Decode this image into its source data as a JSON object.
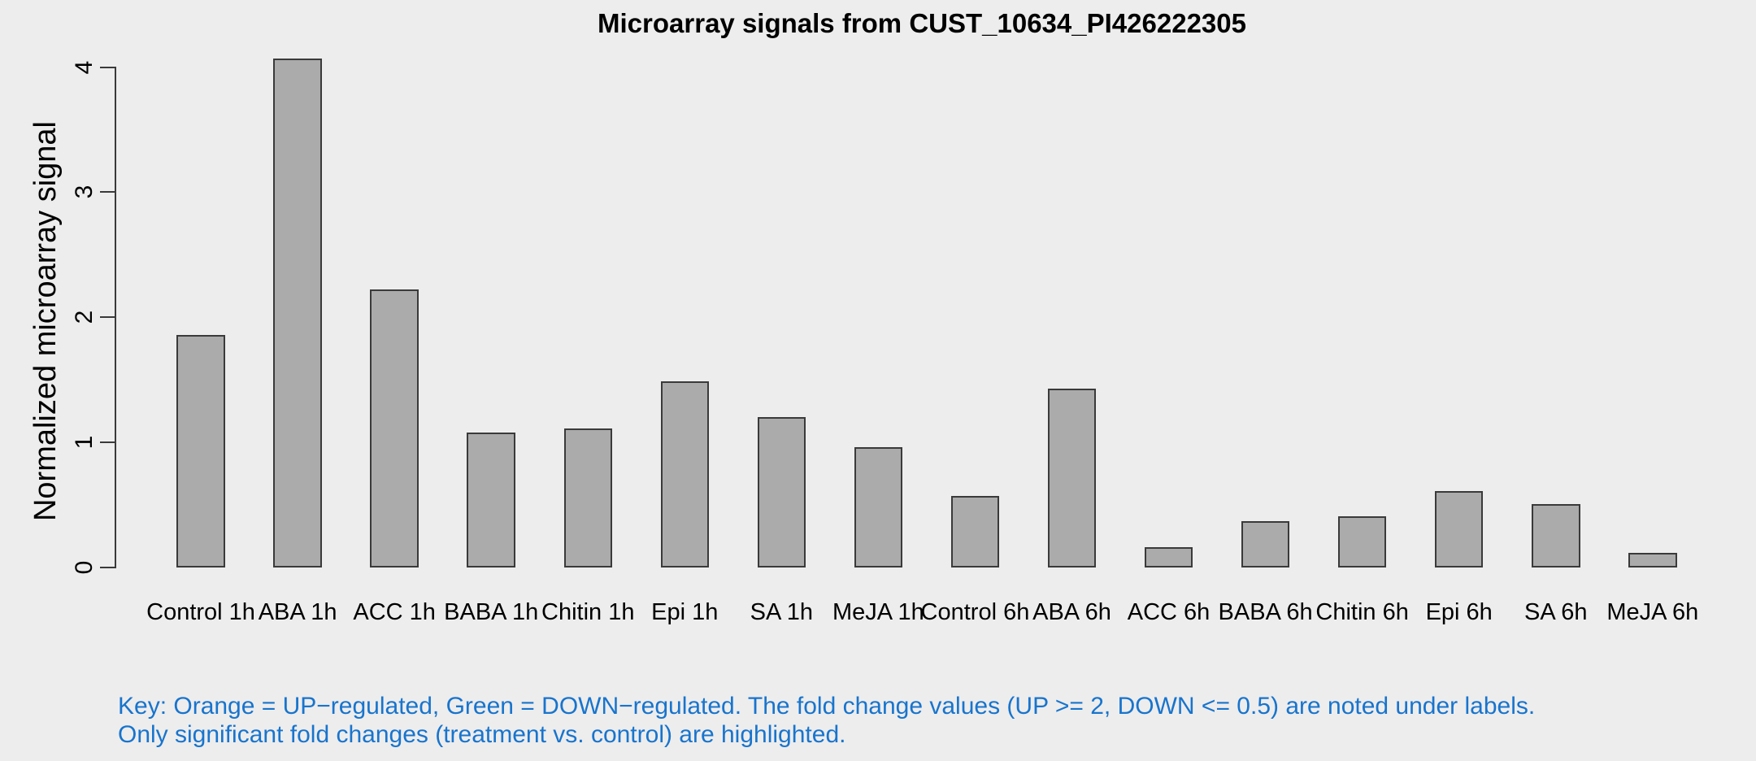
{
  "figure": {
    "title": "Microarray signals from CUST_10634_PI426222305",
    "y_axis_label": "Normalized microarray signal",
    "note_line1": "Key: Orange = UP−regulated, Green = DOWN−regulated. The fold change values (UP >= 2, DOWN <= 0.5) are noted under labels.",
    "note_line2": "Only significant fold changes (treatment vs. control) are highlighted.",
    "note_color": "#1874CD",
    "background_color": "#EDEDED",
    "text_color": "#000000"
  },
  "chart_data": {
    "type": "bar",
    "title": "Microarray signals from CUST_10634_PI426222305",
    "xlabel": "",
    "ylabel": "Normalized microarray signal",
    "categories": [
      "Control 1h",
      "ABA 1h",
      "ACC 1h",
      "BABA 1h",
      "Chitin 1h",
      "Epi 1h",
      "SA 1h",
      "MeJA 1h",
      "Control 6h",
      "ABA 6h",
      "ACC 6h",
      "BABA 6h",
      "Chitin 6h",
      "Epi 6h",
      "SA 6h",
      "MeJA 6h"
    ],
    "values": [
      1.86,
      4.07,
      2.22,
      1.08,
      1.11,
      1.49,
      1.2,
      0.96,
      0.57,
      1.43,
      0.16,
      0.37,
      0.41,
      0.61,
      0.51,
      0.12
    ],
    "yticks": [
      0,
      1,
      2,
      3,
      4
    ],
    "ylim": [
      0,
      4.2
    ],
    "grid": false,
    "legend_position": "none",
    "bar_fill": "#ABABAB",
    "bar_border": "#3A3A3A"
  }
}
